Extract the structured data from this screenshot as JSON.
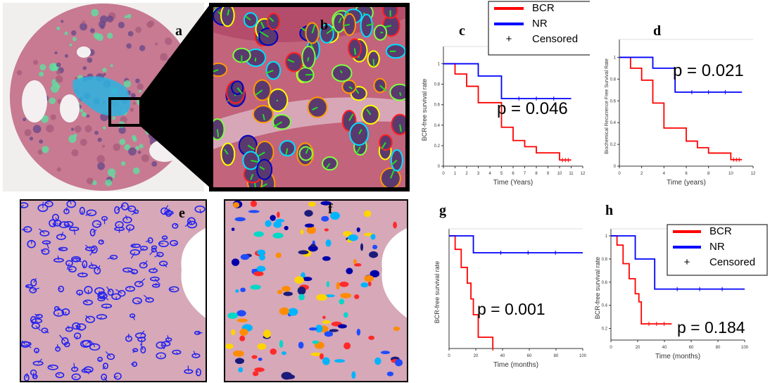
{
  "panels": {
    "a": {
      "label": "a"
    },
    "b": {
      "label": "b"
    },
    "e": {
      "label": "e"
    },
    "f": {
      "label": "f"
    }
  },
  "colors": {
    "bcr": "#ff0000",
    "nr": "#0000ff",
    "tissue": "#c86a86",
    "nuclei": "#4a2a6a"
  },
  "chart_data": [
    {
      "panel": "c",
      "type": "line",
      "xlabel": "Time (Years)",
      "ylabel": "BCR-free survival rate",
      "annotation": "p = 0.046",
      "xlim": [
        0,
        12
      ],
      "ylim": [
        0,
        1.1
      ],
      "xticks": [
        "0",
        "1",
        "2",
        "3",
        "4",
        "5",
        "6",
        "7",
        "8",
        "9",
        "10",
        "11",
        "12"
      ],
      "yticks": [
        "0",
        "0.2",
        "0.4",
        "0.6",
        "0.8",
        "1"
      ],
      "legend": [
        "BCR",
        "NR",
        "Censored"
      ],
      "series": [
        {
          "name": "BCR",
          "color": "#ff0000",
          "x": [
            0,
            1,
            1,
            2,
            2,
            3,
            3,
            5,
            5,
            6,
            6,
            7,
            7,
            8,
            8,
            10,
            10,
            11
          ],
          "y": [
            1,
            1,
            0.9,
            0.9,
            0.78,
            0.78,
            0.62,
            0.62,
            0.38,
            0.38,
            0.25,
            0.25,
            0.19,
            0.19,
            0.13,
            0.13,
            0.06,
            0.06
          ]
        },
        {
          "name": "NR",
          "color": "#0000ff",
          "x": [
            0,
            3,
            3,
            5,
            5,
            11
          ],
          "y": [
            1,
            1,
            0.88,
            0.88,
            0.66,
            0.66
          ]
        }
      ]
    },
    {
      "panel": "d",
      "type": "line",
      "xlabel": "Time (years)",
      "ylabel": "Biochemical Recurrence Free Survival Rate",
      "annotation": "p = 0.021",
      "xlim": [
        0,
        12
      ],
      "ylim": [
        0,
        1.1
      ],
      "xticks": [
        "0",
        "2",
        "4",
        "6",
        "8",
        "10",
        "12"
      ],
      "yticks": [
        "0",
        "0.2",
        "0.4",
        "0.6",
        "0.8",
        "1"
      ],
      "series": [
        {
          "name": "BCR",
          "color": "#ff0000",
          "x": [
            0,
            1,
            1,
            2,
            2,
            3,
            3,
            4,
            4,
            6,
            6,
            7,
            7,
            8,
            8,
            10,
            10,
            11
          ],
          "y": [
            1,
            1,
            0.9,
            0.9,
            0.79,
            0.79,
            0.58,
            0.58,
            0.35,
            0.35,
            0.23,
            0.23,
            0.17,
            0.17,
            0.12,
            0.12,
            0.06,
            0.06
          ]
        },
        {
          "name": "NR",
          "color": "#0000ff",
          "x": [
            0,
            3,
            3,
            5,
            5,
            11
          ],
          "y": [
            1,
            1,
            0.9,
            0.9,
            0.68,
            0.68
          ]
        }
      ]
    },
    {
      "panel": "g",
      "type": "line",
      "xlabel": "Time (months)",
      "ylabel": "BCR-free survival rate",
      "annotation": "p = 0.001",
      "xlim": [
        0,
        110
      ],
      "ylim": [
        0,
        1
      ],
      "xticks": [
        "0",
        "20",
        "40",
        "60",
        "80",
        "100"
      ],
      "series": [
        {
          "name": "BCR",
          "color": "#ff0000",
          "x": [
            0,
            5,
            5,
            10,
            10,
            15,
            15,
            18,
            18,
            20,
            20,
            24,
            24,
            36,
            36
          ],
          "y": [
            1,
            1,
            0.88,
            0.88,
            0.72,
            0.72,
            0.58,
            0.58,
            0.44,
            0.44,
            0.3,
            0.3,
            0.1,
            0.1,
            0
          ]
        },
        {
          "name": "NR",
          "color": "#0000ff",
          "x": [
            0,
            20,
            20,
            110
          ],
          "y": [
            1,
            1,
            0.85,
            0.85
          ]
        }
      ]
    },
    {
      "panel": "h",
      "type": "line",
      "xlabel": "Time (months)",
      "ylabel": "BCR-free survival rate",
      "annotation": "p = 0.184",
      "xlim": [
        0,
        110
      ],
      "ylim": [
        0.1,
        1
      ],
      "xticks": [
        "0",
        "20",
        "40",
        "60",
        "80",
        "100"
      ],
      "yticks": [
        "0.2",
        "0.4",
        "0.6",
        "0.8",
        "1"
      ],
      "legend": [
        "BCR",
        "NR",
        "Censored"
      ],
      "series": [
        {
          "name": "BCR",
          "color": "#ff0000",
          "x": [
            0,
            5,
            5,
            10,
            10,
            15,
            15,
            20,
            20,
            23,
            23,
            25,
            25,
            50
          ],
          "y": [
            1,
            1,
            0.92,
            0.92,
            0.76,
            0.76,
            0.63,
            0.63,
            0.5,
            0.5,
            0.43,
            0.43,
            0.24,
            0.24
          ]
        },
        {
          "name": "NR",
          "color": "#0000ff",
          "x": [
            0,
            20,
            20,
            36,
            36,
            110
          ],
          "y": [
            1,
            1,
            0.8,
            0.8,
            0.54,
            0.54
          ]
        }
      ]
    }
  ]
}
